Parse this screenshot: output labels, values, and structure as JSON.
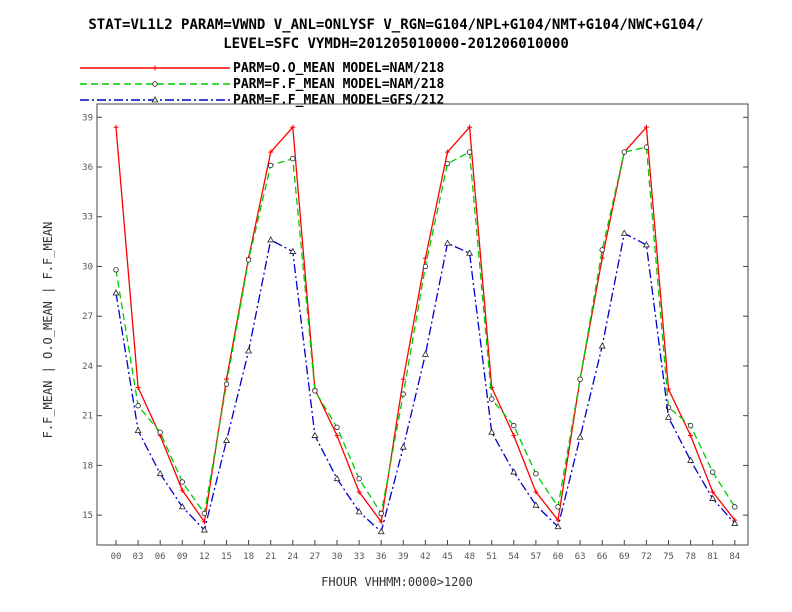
{
  "chart_data": {
    "type": "line",
    "title": "STAT=VL1L2 PARAM=VWND V_ANL=ONLYSF V_RGN=G104/NPL+G104/NMT+G104/NWC+G104/",
    "subtitle": "LEVEL=SFC VYMDH=201205010000-201206010000",
    "xlabel": "FHOUR VHHMM:0000>1200",
    "ylabel": "F.F_MEAN | O.O_MEAN | F.F_MEAN",
    "ylim": [
      13.2,
      39.8
    ],
    "yticks": [
      "15",
      "18",
      "21",
      "24",
      "27",
      "30",
      "33",
      "36",
      "39"
    ],
    "categories": [
      "00",
      "03",
      "06",
      "09",
      "12",
      "15",
      "18",
      "21",
      "24",
      "27",
      "30",
      "33",
      "36",
      "39",
      "42",
      "45",
      "48",
      "51",
      "54",
      "57",
      "60",
      "63",
      "66",
      "69",
      "72",
      "75",
      "78",
      "81",
      "84"
    ],
    "legend_position": "top",
    "grid": false,
    "series": [
      {
        "name": "PARM=O.O_MEAN MODEL=NAM/218",
        "color": "#ff0000",
        "dash": "solid",
        "marker": "plus",
        "values": [
          38.4,
          22.7,
          19.8,
          16.5,
          14.6,
          23.2,
          30.5,
          36.9,
          38.4,
          22.6,
          19.8,
          16.4,
          14.6,
          23.2,
          30.5,
          36.9,
          38.4,
          22.7,
          19.8,
          16.4,
          14.7,
          23.2,
          30.5,
          36.9,
          38.4,
          22.6,
          19.8,
          16.4,
          14.7
        ]
      },
      {
        "name": "PARM=F.F_MEAN MODEL=NAM/218",
        "color": "#00cc00",
        "dash": "dashed",
        "marker": "circle",
        "values": [
          29.8,
          21.6,
          20.0,
          17.0,
          15.1,
          22.9,
          30.4,
          36.1,
          36.5,
          22.5,
          20.3,
          17.2,
          15.1,
          22.3,
          30.0,
          36.2,
          36.9,
          22.0,
          20.4,
          17.5,
          15.5,
          23.2,
          31.0,
          36.9,
          37.2,
          21.5,
          20.4,
          17.6,
          15.5
        ]
      },
      {
        "name": "PARM=F.F_MEAN MODEL=GFS/212",
        "color": "#0000cc",
        "dash": "dashdot",
        "marker": "triangle",
        "values": [
          28.4,
          20.1,
          17.5,
          15.5,
          14.1,
          19.5,
          24.9,
          31.6,
          30.9,
          19.8,
          17.2,
          15.2,
          14.0,
          19.1,
          24.7,
          31.4,
          30.8,
          20.0,
          17.6,
          15.6,
          14.3,
          19.7,
          25.2,
          32.0,
          31.3,
          20.9,
          18.3,
          16.0,
          14.5
        ]
      }
    ]
  }
}
